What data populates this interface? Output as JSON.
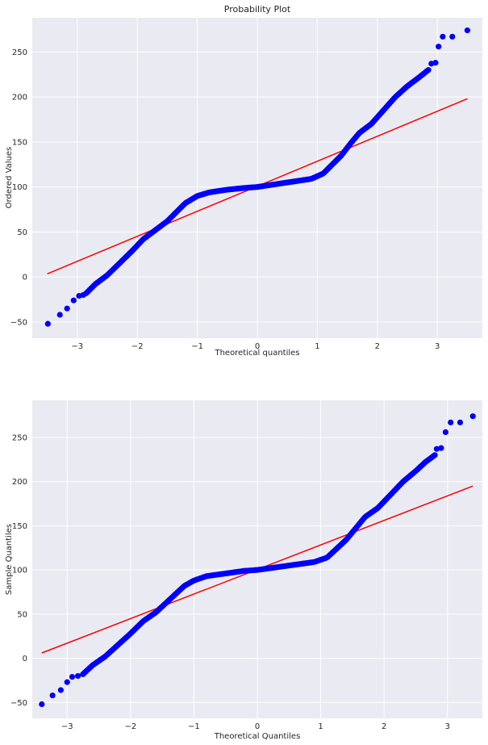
{
  "chart_data": [
    {
      "type": "scatter",
      "title": "Probability Plot",
      "xlabel": "Theoretical quantiles",
      "ylabel": "Ordered Values",
      "xlim": [
        -3.75,
        3.75
      ],
      "ylim": [
        -68,
        288
      ],
      "xticks": [
        -3,
        -2,
        -1,
        0,
        1,
        2,
        3
      ],
      "yticks": [
        -50,
        0,
        50,
        100,
        150,
        200,
        250
      ],
      "grid": true,
      "marker_color": "#0000ff",
      "line_color": "#ff0000",
      "fit_line": {
        "x": [
          -3.5,
          3.5
        ],
        "y": [
          3.5,
          198
        ]
      },
      "outliers": [
        {
          "x": -3.49,
          "y": -52
        },
        {
          "x": -3.29,
          "y": -42
        },
        {
          "x": -3.17,
          "y": -35
        },
        {
          "x": -3.06,
          "y": -26
        },
        {
          "x": -2.97,
          "y": -21
        },
        {
          "x": -2.9,
          "y": -20
        },
        {
          "x": 2.9,
          "y": 237
        },
        {
          "x": 2.97,
          "y": 238
        },
        {
          "x": 3.02,
          "y": 256
        },
        {
          "x": 3.09,
          "y": 267
        },
        {
          "x": 3.25,
          "y": 267
        },
        {
          "x": 3.5,
          "y": 274
        }
      ],
      "quantile_curve": {
        "x": [
          -2.85,
          -2.7,
          -2.5,
          -2.3,
          -2.1,
          -1.9,
          -1.7,
          -1.5,
          -1.35,
          -1.2,
          -1.0,
          -0.8,
          -0.5,
          -0.2,
          0.0,
          0.3,
          0.6,
          0.9,
          1.1,
          1.25,
          1.4,
          1.55,
          1.7,
          1.9,
          2.1,
          2.3,
          2.5,
          2.7,
          2.85
        ],
        "y": [
          -18,
          -8,
          2,
          15,
          28,
          42,
          52,
          62,
          72,
          82,
          90,
          94,
          97,
          99,
          100,
          103,
          106,
          109,
          115,
          125,
          135,
          148,
          160,
          170,
          185,
          200,
          212,
          222,
          230
        ]
      }
    },
    {
      "type": "scatter",
      "title": "",
      "xlabel": "Theoretical Quantiles",
      "ylabel": "Sample Quantiles",
      "xlim": [
        -3.55,
        3.55
      ],
      "ylim": [
        -68,
        292
      ],
      "xticks": [
        -3,
        -2,
        -1,
        0,
        1,
        2,
        3
      ],
      "yticks": [
        -50,
        0,
        50,
        100,
        150,
        200,
        250
      ],
      "grid": true,
      "marker_color": "#0000ff",
      "line_color": "#ff0000",
      "fit_line": {
        "x": [
          -3.4,
          3.4
        ],
        "y": [
          6,
          195
        ]
      },
      "outliers": [
        {
          "x": -3.4,
          "y": -52
        },
        {
          "x": -3.23,
          "y": -42
        },
        {
          "x": -3.1,
          "y": -36
        },
        {
          "x": -3.0,
          "y": -27
        },
        {
          "x": -2.92,
          "y": -21
        },
        {
          "x": -2.83,
          "y": -20
        },
        {
          "x": 2.83,
          "y": 237
        },
        {
          "x": 2.9,
          "y": 238
        },
        {
          "x": 2.97,
          "y": 256
        },
        {
          "x": 3.05,
          "y": 267
        },
        {
          "x": 3.2,
          "y": 267
        },
        {
          "x": 3.4,
          "y": 274
        }
      ],
      "quantile_curve": {
        "x": [
          -2.75,
          -2.6,
          -2.4,
          -2.2,
          -2.0,
          -1.8,
          -1.6,
          -1.45,
          -1.3,
          -1.15,
          -1.0,
          -0.8,
          -0.5,
          -0.2,
          0.0,
          0.3,
          0.6,
          0.9,
          1.1,
          1.25,
          1.4,
          1.55,
          1.7,
          1.9,
          2.1,
          2.3,
          2.5,
          2.65,
          2.8
        ],
        "y": [
          -18,
          -8,
          2,
          15,
          28,
          42,
          52,
          62,
          72,
          82,
          88,
          93,
          96,
          99,
          100,
          103,
          106,
          109,
          114,
          124,
          134,
          147,
          160,
          170,
          185,
          200,
          212,
          222,
          230
        ]
      }
    }
  ]
}
